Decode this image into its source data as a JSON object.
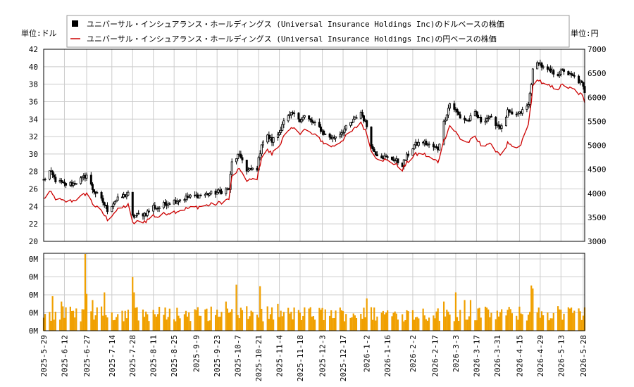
{
  "chart_data": [
    {
      "type": "candlestick+line",
      "legend": [
        {
          "label": "ユニバーサル・インシュアランス・ホールディングス (Universal Insurance Holdings Inc)のドルベースの株価",
          "marker": "black-square",
          "color": "#000000"
        },
        {
          "label": "ユニバーサル・インシュアランス・ホールディングス (Universal Insurance Holdings Inc)の円ベースの株価",
          "marker": "red-line",
          "color": "#cc0000"
        }
      ],
      "legend_position": "top-center",
      "y_left_label": "単位:ドル",
      "y_right_label": "単位:円",
      "y_left_range": [
        20,
        42
      ],
      "y_left_ticks": [
        "20",
        "22",
        "24",
        "26",
        "28",
        "30",
        "32",
        "34",
        "36",
        "38",
        "40",
        "42"
      ],
      "y_right_range": [
        3000,
        7000
      ],
      "y_right_ticks": [
        "3000",
        "3500",
        "4000",
        "4500",
        "5000",
        "5500",
        "6000",
        "6500",
        "7000"
      ],
      "grid": true,
      "price_anchors_usd": [
        [
          "2025-05-29",
          27.0
        ],
        [
          "2025-06-02",
          28.0
        ],
        [
          "2025-06-06",
          27.0
        ],
        [
          "2025-06-12",
          26.5
        ],
        [
          "2025-06-18",
          26.6
        ],
        [
          "2025-06-24",
          27.2
        ],
        [
          "2025-06-27",
          27.6
        ],
        [
          "2025-07-01",
          26.0
        ],
        [
          "2025-07-08",
          24.5
        ],
        [
          "2025-07-11",
          23.6
        ],
        [
          "2025-07-16",
          24.6
        ],
        [
          "2025-07-22",
          25.2
        ],
        [
          "2025-07-25",
          25.4
        ],
        [
          "2025-07-28",
          22.8
        ],
        [
          "2025-07-31",
          23.0
        ],
        [
          "2025-08-06",
          23.2
        ],
        [
          "2025-08-11",
          24.0
        ],
        [
          "2025-08-14",
          23.8
        ],
        [
          "2025-08-20",
          24.4
        ],
        [
          "2025-08-25",
          24.6
        ],
        [
          "2025-09-02",
          25.0
        ],
        [
          "2025-09-09",
          25.2
        ],
        [
          "2025-09-16",
          25.4
        ],
        [
          "2025-09-23",
          25.6
        ],
        [
          "2025-10-01",
          26.0
        ],
        [
          "2025-10-03",
          29.0
        ],
        [
          "2025-10-07",
          29.8
        ],
        [
          "2025-10-10",
          29.5
        ],
        [
          "2025-10-13",
          28.0
        ],
        [
          "2025-10-16",
          28.2
        ],
        [
          "2025-10-20",
          28.4
        ],
        [
          "2025-10-23",
          31.2
        ],
        [
          "2025-10-27",
          32.0
        ],
        [
          "2025-10-30",
          31.5
        ],
        [
          "2025-11-04",
          32.5
        ],
        [
          "2025-11-06",
          33.5
        ],
        [
          "2025-11-10",
          34.2
        ],
        [
          "2025-11-13",
          34.6
        ],
        [
          "2025-11-18",
          34.0
        ],
        [
          "2025-11-21",
          34.3
        ],
        [
          "2025-11-25",
          33.8
        ],
        [
          "2025-12-01",
          33.0
        ],
        [
          "2025-12-05",
          32.2
        ],
        [
          "2025-12-10",
          31.8
        ],
        [
          "2025-12-15",
          32.4
        ],
        [
          "2025-12-19",
          33.0
        ],
        [
          "2025-12-24",
          33.8
        ],
        [
          "2025-12-29",
          34.8
        ],
        [
          "2026-01-02",
          33.2
        ],
        [
          "2026-01-06",
          30.5
        ],
        [
          "2026-01-09",
          30.0
        ],
        [
          "2026-01-14",
          29.6
        ],
        [
          "2026-01-20",
          29.4
        ],
        [
          "2026-01-26",
          28.8
        ],
        [
          "2026-01-30",
          30.0
        ],
        [
          "2026-02-03",
          31.0
        ],
        [
          "2026-02-09",
          31.4
        ],
        [
          "2026-02-13",
          31.0
        ],
        [
          "2026-02-19",
          30.6
        ],
        [
          "2026-02-23",
          33.6
        ],
        [
          "2026-02-27",
          35.8
        ],
        [
          "2026-03-03",
          35.0
        ],
        [
          "2026-03-06",
          34.2
        ],
        [
          "2026-03-11",
          33.8
        ],
        [
          "2026-03-16",
          34.6
        ],
        [
          "2026-03-20",
          33.8
        ],
        [
          "2026-03-25",
          34.2
        ],
        [
          "2026-03-31",
          33.4
        ],
        [
          "2026-04-03",
          33.0
        ],
        [
          "2026-04-07",
          34.8
        ],
        [
          "2026-04-10",
          34.4
        ],
        [
          "2026-04-15",
          34.6
        ],
        [
          "2026-04-21",
          35.6
        ],
        [
          "2026-04-24",
          39.5
        ],
        [
          "2026-04-28",
          40.6
        ],
        [
          "2026-05-01",
          39.8
        ],
        [
          "2026-05-06",
          39.4
        ],
        [
          "2026-05-11",
          39.2
        ],
        [
          "2026-05-15",
          39.6
        ],
        [
          "2026-05-19",
          39.0
        ],
        [
          "2026-05-22",
          38.8
        ],
        [
          "2026-05-27",
          38.0
        ],
        [
          "2026-05-29",
          37.2
        ]
      ],
      "yen_ratio_anchors": [
        [
          "2025-05-29",
          143.8
        ],
        [
          "2025-06-24",
          145.0
        ],
        [
          "2025-07-28",
          148.0
        ],
        [
          "2025-08-25",
          147.0
        ],
        [
          "2025-09-23",
          147.8
        ],
        [
          "2025-10-13",
          151.5
        ],
        [
          "2025-11-18",
          155.0
        ],
        [
          "2025-12-19",
          157.0
        ],
        [
          "2026-01-14",
          158.5
        ],
        [
          "2026-02-13",
          153.0
        ],
        [
          "2026-03-16",
          149.0
        ],
        [
          "2026-04-15",
          143.0
        ],
        [
          "2026-04-24",
          157.0
        ],
        [
          "2026-05-29",
          159.0
        ]
      ]
    },
    {
      "type": "bar",
      "series_name": "volume",
      "color": "#f0a000",
      "y_ticks": [
        "0M",
        "0M",
        "0M",
        "0M",
        "0M"
      ],
      "volume_spikes": [
        [
          "2025-06-04",
          0.45
        ],
        [
          "2025-06-10",
          0.38
        ],
        [
          "2025-06-26",
          1.0
        ],
        [
          "2025-06-27",
          0.48
        ],
        [
          "2025-07-01",
          0.4
        ],
        [
          "2025-07-09",
          0.5
        ],
        [
          "2025-07-28",
          0.7
        ],
        [
          "2025-07-29",
          0.5
        ],
        [
          "2025-09-29",
          0.38
        ],
        [
          "2025-10-06",
          0.6
        ],
        [
          "2025-10-22",
          0.58
        ],
        [
          "2025-11-03",
          0.35
        ],
        [
          "2025-12-31",
          0.3
        ],
        [
          "2026-01-02",
          0.42
        ],
        [
          "2026-02-23",
          0.38
        ],
        [
          "2026-03-03",
          0.5
        ],
        [
          "2026-03-09",
          0.4
        ],
        [
          "2026-03-13",
          0.4
        ],
        [
          "2026-04-23",
          0.59
        ],
        [
          "2026-04-24",
          0.55
        ],
        [
          "2026-05-11",
          0.32
        ]
      ],
      "volume_base_level": 0.22
    }
  ],
  "x_axis": {
    "ticks": [
      "2025-5-29",
      "2025-6-12",
      "2025-6-27",
      "2025-7-14",
      "2025-7-28",
      "2025-8-11",
      "2025-8-25",
      "2025-9-9",
      "2025-9-23",
      "2025-10-7",
      "2025-10-21",
      "2025-11-4",
      "2025-11-18",
      "2025-12-3",
      "2025-12-17",
      "2026-1-2",
      "2026-1-16",
      "2026-2-2",
      "2026-2-17",
      "2026-3-3",
      "2026-3-17",
      "2026-3-31",
      "2026-4-15",
      "2026-4-29",
      "2026-5-13",
      "2026-5-28"
    ],
    "start": "2025-05-29",
    "end": "2026-05-29"
  }
}
